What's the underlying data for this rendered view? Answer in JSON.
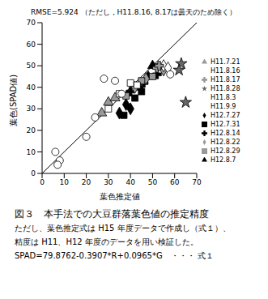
{
  "chart_data": {
    "type": "scatter",
    "title": "RMSE=5.924 （ただし，H11.8.16, 8.17は曇天のため除く）",
    "x_label": "葉色推定値",
    "y_label": "葉色(SPAD値)",
    "xlim": [
      0,
      70
    ],
    "ylim": [
      0,
      70
    ],
    "xticks": [
      0,
      10,
      20,
      30,
      40,
      50,
      60,
      70
    ],
    "yticks": [
      0,
      10,
      20,
      30,
      40,
      50,
      60,
      70
    ],
    "grid": false,
    "legend": "right",
    "caption": [
      "図３　本手法での大豆群落葉色値の推定精度",
      "ただし、葉色推定式は H15 年度データで作成し（式１）、",
      "精度は H11、H12 年度のデータを用い検証した。",
      "SPAD=79.8762-0.3907*R+0.0965*G　・・・ 式１"
    ],
    "series": [
      {
        "name": "H12.7.27",
        "color": "#000000",
        "marker": "diamond",
        "x": [
          35,
          38,
          40
        ],
        "values": [
          28,
          32,
          30
        ]
      },
      {
        "name": "H12.7.31",
        "color": "#000000",
        "marker": "square",
        "x": [
          37,
          42,
          45
        ],
        "values": [
          27,
          35,
          38
        ]
      },
      {
        "name": "H12.8.7",
        "color": "#000000",
        "marker": "triangle",
        "x": [
          48,
          50,
          44
        ],
        "values": [
          45,
          50,
          40
        ]
      },
      {
        "name": "H12.8.14",
        "color": "#000000",
        "marker": "cross",
        "x": [
          46,
          52,
          40
        ],
        "values": [
          42,
          46,
          38
        ]
      },
      {
        "name": "H12.8.22",
        "color": "#999999",
        "marker": "diamond",
        "x": [
          42,
          47,
          55
        ],
        "values": [
          40,
          44,
          48
        ]
      },
      {
        "name": "H12.8.29",
        "color": "#999999",
        "marker": "square",
        "x": [
          50,
          45,
          38
        ],
        "values": [
          45,
          43,
          36
        ]
      },
      {
        "name": "H11.7.21",
        "color": "#999999",
        "marker": "triangle",
        "x": [
          27,
          30,
          33
        ],
        "values": [
          28,
          33,
          35
        ]
      },
      {
        "name": "H11.8.3",
        "color": "#ffffff",
        "marker": "square",
        "x": [
          35,
          40,
          43,
          30
        ],
        "values": [
          37,
          42,
          41,
          30
        ]
      },
      {
        "name": "H11.8.16",
        "color": "#ffffff",
        "marker": "diamond",
        "x": [
          55,
          57
        ],
        "values": [
          50,
          49
        ]
      },
      {
        "name": "H11.8.17",
        "color": "#999999",
        "marker": "cross",
        "x": [
          52,
          53
        ],
        "values": [
          49,
          50
        ]
      },
      {
        "name": "H11.8.28",
        "color": "#666666",
        "marker": "star",
        "x": [
          63,
          62,
          65
        ],
        "values": [
          51,
          48,
          33
        ]
      },
      {
        "name": "H11.9.9",
        "color": "#ffffff",
        "marker": "circle",
        "x": [
          6,
          8,
          7,
          20,
          24,
          28,
          33,
          36,
          58
        ],
        "values": [
          10,
          6,
          4,
          17,
          26,
          44,
          43,
          37,
          46
        ]
      }
    ]
  }
}
